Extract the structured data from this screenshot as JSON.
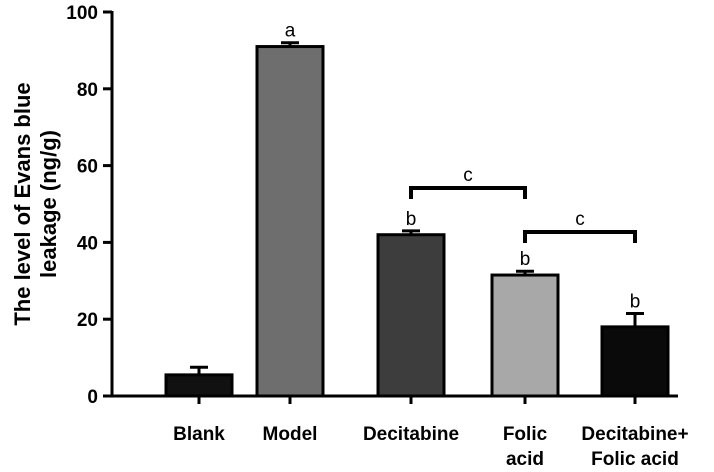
{
  "chart_data": {
    "type": "bar",
    "title": "",
    "xlabel": "",
    "ylabel_lines": [
      "The level of Evans blue",
      "leakage (ng/g)"
    ],
    "ylim": [
      0,
      100
    ],
    "yticks": [
      0,
      20,
      40,
      60,
      80,
      100
    ],
    "categories": [
      [
        "Blank"
      ],
      [
        "Model"
      ],
      [
        "Decitabine"
      ],
      [
        "Folic",
        "acid"
      ],
      [
        "Decitabine+",
        "Folic acid"
      ]
    ],
    "values": [
      5.5,
      91,
      42,
      31.5,
      18
    ],
    "errors": [
      2,
      1,
      1,
      1,
      3.5
    ],
    "letters": [
      "",
      "a",
      "b",
      "b",
      "b"
    ],
    "colors": [
      "#111111",
      "#6e6e6e",
      "#3d3d3d",
      "#a8a8a8",
      "#0a0a0a"
    ],
    "brackets": [
      {
        "from": 2,
        "to": 3,
        "label": "c"
      },
      {
        "from": 3,
        "to": 4,
        "label": "c"
      }
    ],
    "grid": false,
    "legend": "none"
  }
}
